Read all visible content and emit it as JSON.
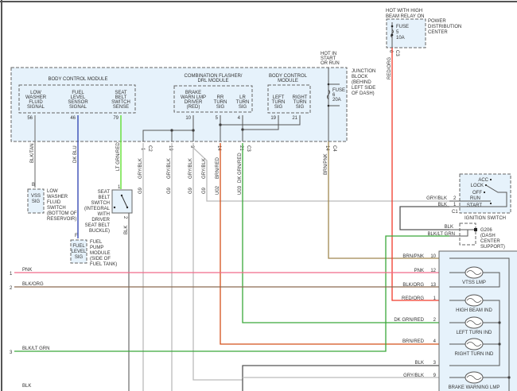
{
  "colors": {
    "pink": "#f06a8a",
    "red": "#f03a2a",
    "orange": "#d4501a",
    "green": "#3aa83a",
    "lt_green": "#55dd22",
    "blue": "#2a3fb0",
    "gray": "#b8b8b8",
    "dark": "#555555",
    "tan": "#a08850",
    "box_fill": "#e6f2fb"
  },
  "junction_block": {
    "label": [
      "JUNCTION",
      "BLOCK",
      "(BEHIND",
      "LEFT SIDE",
      "OF DASH)"
    ],
    "hot_label": [
      "HOT IN",
      "START",
      "OR RUN"
    ],
    "fuse": [
      "FUSE",
      "6",
      "20A"
    ]
  },
  "bcm1": {
    "title": "BODY CONTROL MODULE",
    "sig1": [
      "LOW",
      "WASHER",
      "FLUID",
      "SIGNAL"
    ],
    "sig2": [
      "FUEL",
      "LEVEL",
      "SENSOR",
      "SIGNAL"
    ],
    "sig3": [
      "SEAT",
      "BELT",
      "SWITCH",
      "SENSE"
    ],
    "pins": [
      "56",
      "46",
      "79"
    ],
    "conn": "C1"
  },
  "flasher": {
    "title": [
      "COMBINATION FLASHER/",
      "DRL MODULE"
    ],
    "sig1": [
      "BRAKE",
      "WARN LMP",
      "DRIVER",
      "(RED)"
    ],
    "sig2": [
      "RR",
      "TURN",
      "SIG"
    ],
    "sig3": [
      "LR",
      "TURN",
      "SIG"
    ],
    "pins": [
      "10",
      "5",
      "4"
    ]
  },
  "bcm2": {
    "title": [
      "BODY CONTROL",
      "MODULE"
    ],
    "sig1": [
      "LEFT",
      "TURN",
      "SIG"
    ],
    "sig2": [
      "RIGHT",
      "TURN",
      "SIG"
    ],
    "pins": [
      "19",
      "21"
    ]
  },
  "jb_connectors": [
    {
      "pin": "1",
      "conn": "C2"
    },
    {
      "pin": "19",
      "conn": ""
    },
    {
      "pin": "9",
      "conn": ""
    },
    {
      "pin": "14",
      "conn": ""
    },
    {
      "pin": "21",
      "conn": "C3"
    },
    {
      "pin": "14",
      "conn": "C4"
    }
  ],
  "pdc": {
    "hot_label": [
      "HOT WITH HIGH",
      "BEAM RELAY ON"
    ],
    "label": [
      "POWER",
      "DISTRIBUTION",
      "CENTER"
    ],
    "fuse": [
      "FUSE",
      "5",
      "10A"
    ],
    "pin": "6",
    "conn": "C3"
  },
  "wires": {
    "blk_tan": "BLK/TAN",
    "dk_blu": "DK BLU",
    "lt_grn_red": "LT GRN/RED",
    "gry_blk": "GRY/BLK",
    "brn_red": "BRN/RED",
    "dk_grn_red": "DK GRN/RED",
    "brn_pnk": "BRN/PNK",
    "red_org": "RED/ORG",
    "blk": "BLK",
    "code_g9": "G9",
    "code_u02": "U02",
    "code_u03": "U03"
  },
  "washer_switch": {
    "box": [
      "VSS",
      "SIG"
    ],
    "pin": "B",
    "label": [
      "LOW",
      "WASHER",
      "FLUID",
      "SWITCH",
      "(BOTTOM OF",
      "RESERVOIR)"
    ]
  },
  "fuel_pump": {
    "box": [
      "FUEL",
      "LEVEL",
      "SIG"
    ],
    "pin": "F",
    "label": [
      "FUEL",
      "PUMP",
      "MODULE",
      "(SIDE OF",
      "FUEL TANK)"
    ]
  },
  "seat_belt_switch": {
    "pin_top": "1",
    "pin_bottom": "2",
    "label": [
      "SEAT",
      "BELT",
      "SWITCH",
      "(INTEGRAL",
      "WITH",
      "DRIVER",
      "SEAT BELT",
      "BUCKLE)"
    ]
  },
  "ignition_switch": {
    "label": "IGNITION SWITCH",
    "positions": [
      "ACC",
      "LOCK",
      "OFF",
      "RUN",
      "START"
    ],
    "pins": [
      {
        "wire": "GRY/BLK",
        "pin": "2"
      },
      {
        "wire": "BLK",
        "pin": "1"
      }
    ],
    "conn": "C1"
  },
  "ground": {
    "label": [
      "G206",
      "(DASH",
      "CENTER",
      "SUPPORT)"
    ],
    "wires": [
      "BLK",
      "BLK/LT GRN"
    ]
  },
  "left_wires": [
    {
      "num": "1",
      "label": "PNK"
    },
    {
      "num": "2",
      "label": "BLK/ORG"
    },
    {
      "num": "3",
      "label": "BLK/LT GRN"
    },
    {
      "num": "",
      "label": "BLK"
    }
  ],
  "cluster": {
    "pins": [
      {
        "wire": "BRN/PNK",
        "pin": "10"
      },
      {
        "wire": "PNK",
        "pin": "12"
      },
      {
        "wire": "BLK/ORG",
        "pin": "13"
      },
      {
        "wire": "RED/ORG",
        "pin": "1"
      },
      {
        "wire": "DK GRN/RED",
        "pin": "2"
      },
      {
        "wire": "BRN/RED",
        "pin": "4"
      },
      {
        "wire": "BLK",
        "pin": "3"
      },
      {
        "wire": "GRY/BLK",
        "pin": "9"
      }
    ],
    "lamps": [
      "VTSS LMP",
      "HIGH BEAM IND",
      "LEFT TURN IND",
      "RIGHT TURN IND",
      "BRAKE WARNING LMP"
    ]
  }
}
